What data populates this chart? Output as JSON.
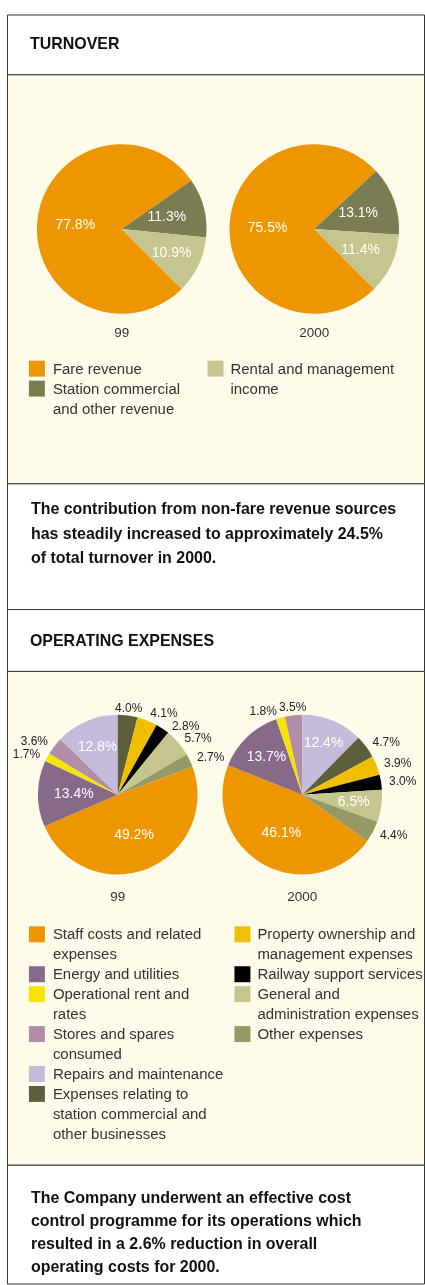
{
  "chart_data": [
    {
      "type": "pie",
      "title": "TURNOVER",
      "categories": [
        "Fare revenue",
        "Station commercial and other revenue",
        "Rental and management income"
      ],
      "colors": [
        "#ee9600",
        "#7a7d52",
        "#c5c68f"
      ],
      "series": [
        {
          "name": "99",
          "values": [
            77.8,
            11.3,
            10.9
          ],
          "value_labels": [
            "77.8%",
            "11.3%",
            "10.9%"
          ]
        },
        {
          "name": "2000",
          "values": [
            75.5,
            13.1,
            11.4
          ],
          "value_labels": [
            "75.5%",
            "13.1%",
            "11.4%"
          ]
        }
      ],
      "legend": "bottom",
      "annotations": [
        "The contribution from non-fare revenue sources has steadily increased to approximately 24.5% of total turnover in 2000."
      ]
    },
    {
      "type": "pie",
      "title": "OPERATING EXPENSES",
      "categories": [
        "Staff costs and related expenses",
        "Energy and utilities",
        "Operational rent and rates",
        "Stores and spares consumed",
        "Repairs and maintenance",
        "Expenses relating to station commercial and other businesses",
        "Property ownership and management expenses",
        "Railway support services",
        "General and administration expenses",
        "Other expenses"
      ],
      "colors": [
        "#ee9600",
        "#876a8a",
        "#f5e500",
        "#b28da8",
        "#c6bada",
        "#5b5f3c",
        "#f0bf00",
        "#000000",
        "#c5c68f",
        "#969966"
      ],
      "series": [
        {
          "name": "99",
          "values": [
            49.2,
            13.4,
            1.7,
            3.6,
            12.8,
            4.0,
            4.1,
            2.8,
            5.7,
            2.7
          ],
          "value_labels": [
            "49.2%",
            "13.4%",
            "1.7%",
            "3.6%",
            "12.8%",
            "4.0%",
            "4.1%",
            "2.8%",
            "5.7%",
            "2.7%"
          ]
        },
        {
          "name": "2000",
          "values": [
            46.1,
            13.7,
            1.8,
            3.5,
            12.4,
            4.7,
            3.9,
            3.0,
            6.5,
            4.4
          ],
          "value_labels": [
            "46.1%",
            "13.7%",
            "1.8%",
            "3.5%",
            "12.4%",
            "4.7%",
            "3.9%",
            "3.0%",
            "6.5%",
            "4.4%"
          ]
        }
      ],
      "legend": "bottom",
      "annotations": [
        "The Company underwent an effective cost control programme for its operations which resulted in a 2.6% reduction in overall operating costs for 2000."
      ]
    }
  ]
}
